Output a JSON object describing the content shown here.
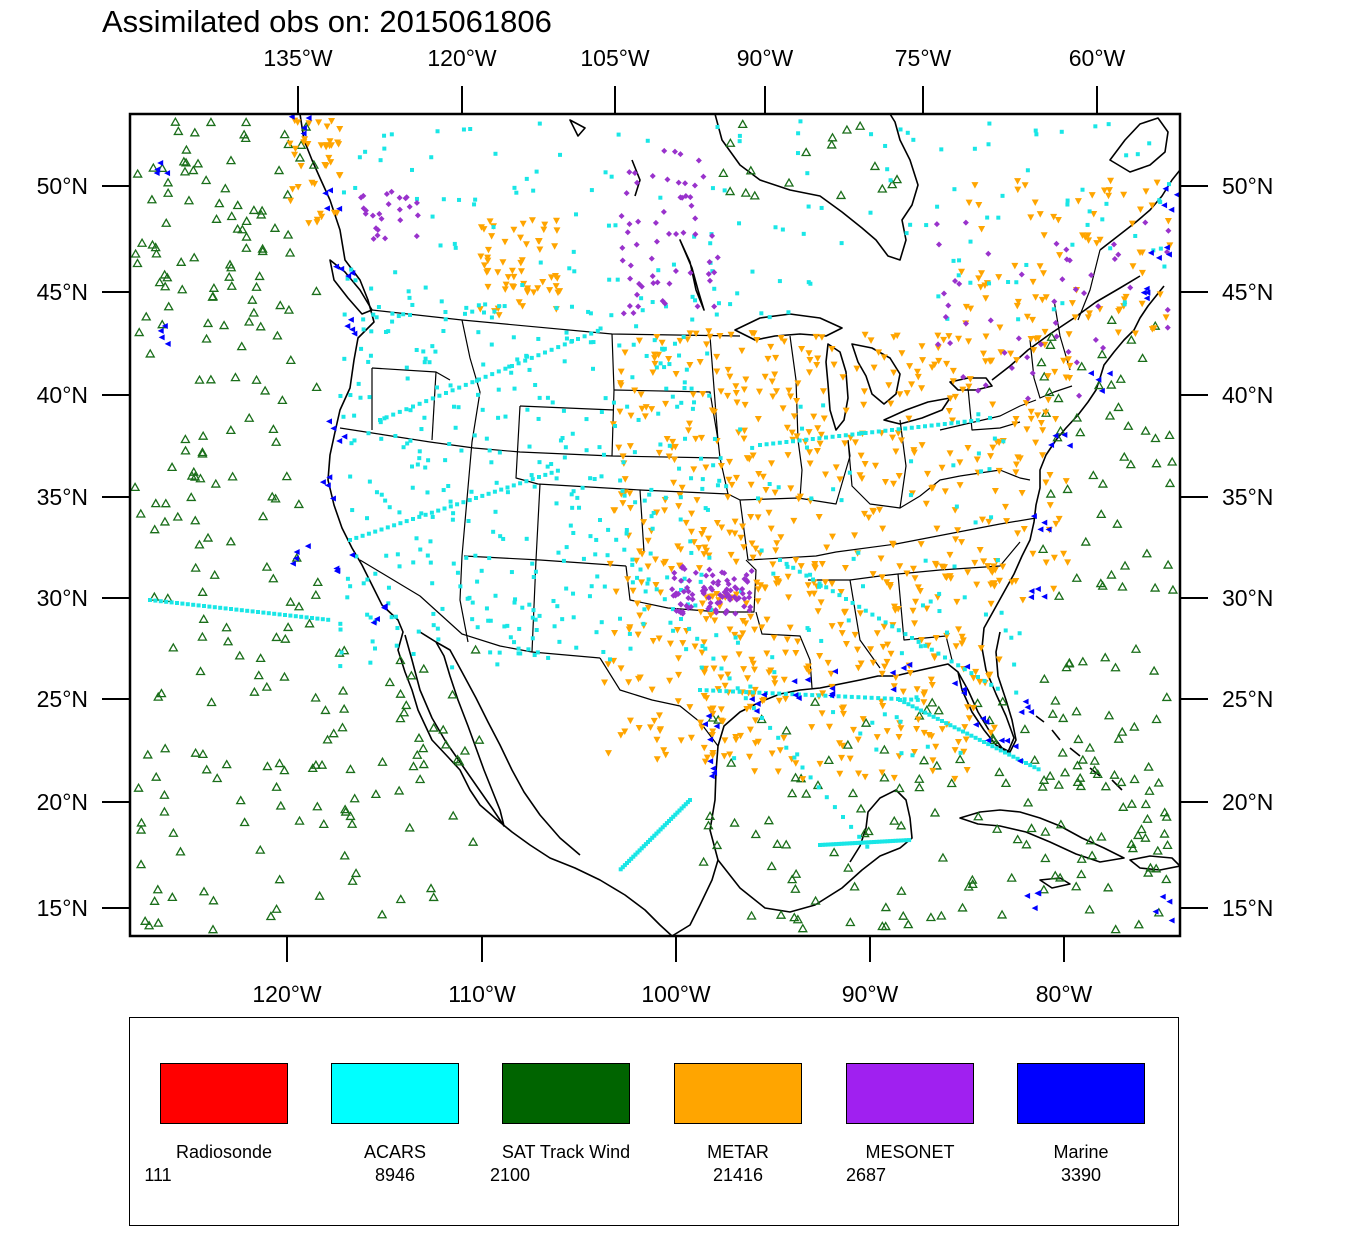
{
  "title": "Assimilated obs on: 2015061806",
  "top_ticks": [
    "135°W",
    "120°W",
    "105°W",
    "90°W",
    "75°W",
    "60°W"
  ],
  "bottom_ticks": [
    "120°W",
    "110°W",
    "100°W",
    "90°W",
    "80°W"
  ],
  "left_ticks": [
    "50°N",
    "45°N",
    "40°N",
    "35°N",
    "30°N",
    "25°N",
    "20°N",
    "15°N"
  ],
  "right_ticks": [
    "50°N",
    "45°N",
    "40°N",
    "35°N",
    "30°N",
    "25°N",
    "20°N",
    "15°N"
  ],
  "legend": [
    {
      "name": "Radiosonde",
      "count": "111",
      "color": "#ff0000"
    },
    {
      "name": "ACARS",
      "count": "8946",
      "color": "#00ffff"
    },
    {
      "name": "SAT Track Wind",
      "count": "2100",
      "color": "#006400"
    },
    {
      "name": "METAR",
      "count": "21416",
      "color": "#ffa500"
    },
    {
      "name": "MESONET",
      "count": "2687",
      "color": "#a020f0"
    },
    {
      "name": "Marine",
      "count": "3390",
      "color": "#0000ff"
    }
  ],
  "marker_colors": {
    "acars": "#19e6e6",
    "sat_track_wind": "#1a6e1a",
    "metar": "#ffa500",
    "mesonet": "#9932cc",
    "marine": "#0000ff"
  }
}
